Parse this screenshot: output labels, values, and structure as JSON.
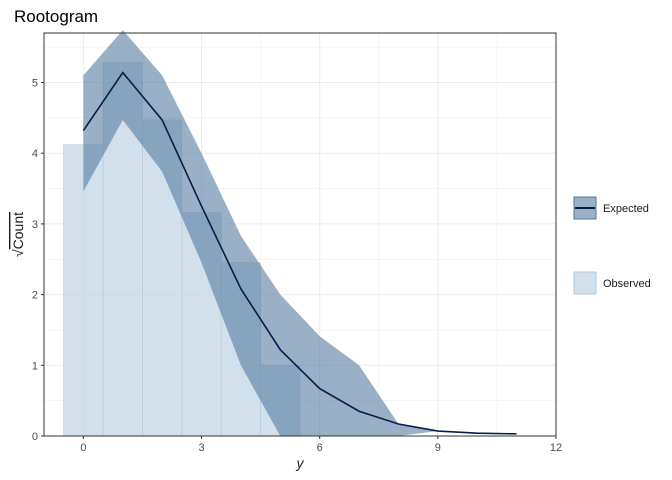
{
  "chart_data": {
    "type": "rootogram",
    "title": "Rootogram",
    "xlabel": "y",
    "ylabel": "Count",
    "ylabel_prefix": "√",
    "xlim": [
      -1,
      12
    ],
    "ylim": [
      0,
      5.7
    ],
    "x_ticks": [
      0,
      3,
      6,
      9,
      12
    ],
    "y_ticks": [
      0,
      1,
      2,
      3,
      4,
      5
    ],
    "grid": true,
    "legend_position": "right",
    "colors": {
      "observed_fill": "#c6d8e6",
      "expected_fill": "#557ba0",
      "expected_line": "#011f4b",
      "grid": "#ebebeb",
      "panel_border": "#333333"
    },
    "observed": {
      "name": "Observed",
      "bins": [
        {
          "x": 0,
          "y": 4.12
        },
        {
          "x": 1,
          "y": 5.28
        },
        {
          "x": 2,
          "y": 4.47
        },
        {
          "x": 3,
          "y": 3.16
        },
        {
          "x": 4,
          "y": 2.45
        },
        {
          "x": 5,
          "y": 1.0
        }
      ]
    },
    "expected": {
      "name": "Expected",
      "x": [
        0,
        1,
        2,
        3,
        4,
        5,
        6,
        7,
        8,
        9,
        10,
        11
      ],
      "y": [
        4.32,
        5.14,
        4.47,
        3.25,
        2.08,
        1.22,
        0.67,
        0.35,
        0.17,
        0.07,
        0.04,
        0.03
      ],
      "lower": [
        3.46,
        4.47,
        3.74,
        2.45,
        1.0,
        0.0,
        0.0,
        0.0,
        0.0,
        0.07,
        0.04,
        0.03
      ],
      "upper": [
        5.1,
        5.74,
        5.1,
        4.0,
        2.83,
        2.0,
        1.41,
        1.0,
        0.17,
        0.07,
        0.04,
        0.03
      ]
    }
  }
}
